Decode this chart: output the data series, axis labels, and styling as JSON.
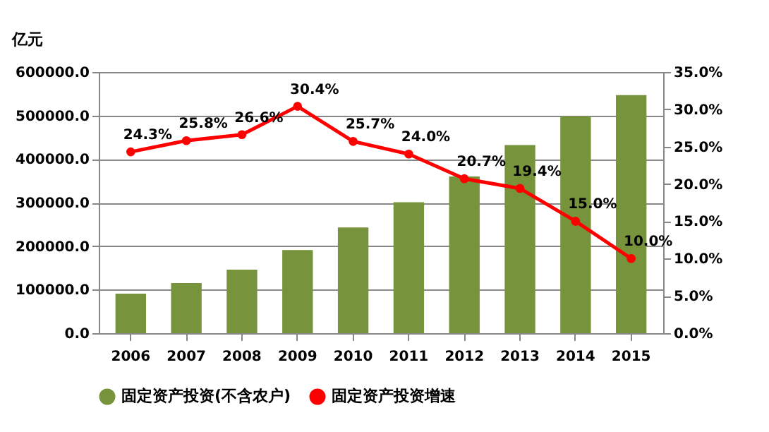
{
  "chart_data": {
    "type": "bar",
    "ylabel": "亿元",
    "categories": [
      "2006",
      "2007",
      "2008",
      "2009",
      "2010",
      "2011",
      "2012",
      "2013",
      "2014",
      "2015"
    ],
    "series": [
      {
        "name": "固定资产投资(不含农户)",
        "color": "#77933c",
        "values": [
          91000,
          115000,
          146000,
          191000,
          243000,
          301000,
          360000,
          432000,
          498000,
          547000
        ]
      },
      {
        "name": "固定资产投资增速",
        "type": "line",
        "axis": "y2",
        "color": "#ff0000",
        "marker": "circle",
        "values": [
          24.3,
          25.8,
          26.6,
          30.4,
          25.7,
          24.0,
          20.7,
          19.4,
          15.0,
          10.0
        ],
        "value_labels": [
          "24.3%",
          "25.8%",
          "26.6%",
          "30.4%",
          "25.7%",
          "24.0%",
          "20.7%",
          "19.4%",
          "15.0%",
          "10.0%"
        ]
      }
    ],
    "ylim": [
      0,
      600000
    ],
    "yticks": [
      {
        "value": 0,
        "label": "0.0"
      },
      {
        "value": 100000,
        "label": "100000.0"
      },
      {
        "value": 200000,
        "label": "200000.0"
      },
      {
        "value": 300000,
        "label": "300000.0"
      },
      {
        "value": 400000,
        "label": "400000.0"
      },
      {
        "value": 500000,
        "label": "500000.0"
      },
      {
        "value": 600000,
        "label": "600000.0"
      }
    ],
    "y2lim": [
      0,
      35
    ],
    "y2ticks": [
      {
        "value": 0,
        "label": "0.0%"
      },
      {
        "value": 5,
        "label": "5.0%"
      },
      {
        "value": 10,
        "label": "10.0%"
      },
      {
        "value": 15,
        "label": "15.0%"
      },
      {
        "value": 20,
        "label": "20.0%"
      },
      {
        "value": 25,
        "label": "25.0%"
      },
      {
        "value": 30,
        "label": "30.0%"
      },
      {
        "value": 35,
        "label": "35.0%"
      }
    ],
    "grid": "y",
    "legend": "bottom"
  }
}
